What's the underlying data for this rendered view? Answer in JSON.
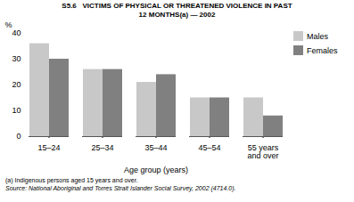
{
  "chart_data": {
    "type": "bar",
    "title": "S5.6   VICTIMS OF PHYSICAL OR THREATENED VIOLENCE IN PAST\n12 MONTHS(a) — 2002",
    "categories": [
      "15–24",
      "25–34",
      "35–44",
      "45–54",
      "55 years\nand over"
    ],
    "series": [
      {
        "name": "Males",
        "color": "#c8c8c8",
        "values": [
          36,
          26,
          21,
          15,
          15
        ]
      },
      {
        "name": "Females",
        "color": "#808080",
        "values": [
          30,
          26,
          24,
          15,
          8
        ]
      }
    ],
    "xlabel": "Age group (years)",
    "ylabel": "%",
    "ylim": [
      0,
      40
    ],
    "yticks": [
      0,
      10,
      20,
      30,
      40
    ],
    "grid": false,
    "legend": "right",
    "annotations": [
      "(a) Indigenous persons aged 15 years and over.",
      "Source: National Aboriginal and Torres Strait Islander Social Survey, 2002 (4714.0)."
    ]
  }
}
